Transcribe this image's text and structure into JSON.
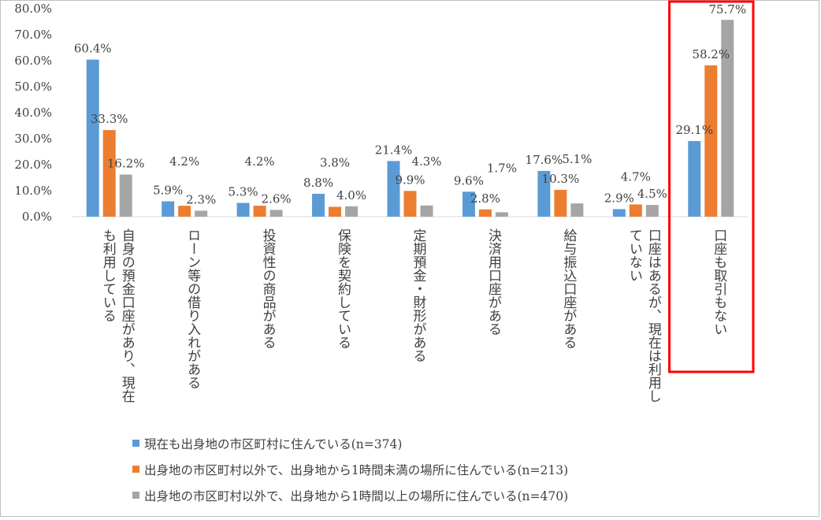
{
  "chart_data": {
    "type": "bar",
    "categories": [
      "自身の預金口座があり、現在も利用している",
      "ローン等の借り入れがある",
      "投資性の商品がある",
      "保険を契約している",
      "定期預金・財形がある",
      "決済用口座がある",
      "給与振込口座がある",
      "口座はあるが、現在は利用していない",
      "口座も取引もない"
    ],
    "category_lines": [
      [
        "自身の預金口座があり、現在",
        "も利用している"
      ],
      [
        "ローン等の借り入れがある"
      ],
      [
        "投資性の商品がある"
      ],
      [
        "保険を契約している"
      ],
      [
        "定期預金・財形がある"
      ],
      [
        "決済用口座がある"
      ],
      [
        "給与振込口座がある"
      ],
      [
        "口座はあるが、現在は利用し",
        "ていない"
      ],
      [
        "口座も取引もない"
      ]
    ],
    "series": [
      {
        "name": "現在も出身地の市区町村に住んでいる(n=374)",
        "color": "#5B9BD5",
        "values": [
          60.4,
          5.9,
          5.3,
          8.8,
          21.4,
          9.6,
          17.6,
          2.9,
          29.1
        ],
        "labels": [
          "60.4%",
          "5.9%",
          "5.3%",
          "8.8%",
          "21.4%",
          "9.6%",
          "17.6%",
          "2.9%",
          "29.1%"
        ]
      },
      {
        "name": "出身地の市区町村以外で、出身地から1時間未満の場所に住んでいる(n=213)",
        "color": "#ED7D31",
        "values": [
          33.3,
          4.2,
          4.2,
          3.8,
          9.9,
          2.8,
          10.3,
          4.7,
          58.2
        ],
        "labels": [
          "33.3%",
          "4.2%",
          "4.2%",
          "3.8%",
          "9.9%",
          "2.8%",
          "10.3%",
          "4.7%",
          "58.2%"
        ]
      },
      {
        "name": "出身地の市区町村以外で、出身地から1時間以上の場所に住んでいる(n=470)",
        "color": "#A5A5A5",
        "values": [
          16.2,
          2.3,
          2.6,
          4.0,
          4.3,
          1.7,
          5.1,
          4.5,
          75.7
        ],
        "labels": [
          "16.2%",
          "2.3%",
          "2.6%",
          "4.0%",
          "4.3%",
          "1.7%",
          "5.1%",
          "4.5%",
          "75.7%"
        ]
      }
    ],
    "y_ticks": [
      "0.0%",
      "10.0%",
      "20.0%",
      "30.0%",
      "40.0%",
      "50.0%",
      "60.0%",
      "70.0%",
      "80.0%"
    ],
    "ylim": [
      0,
      80
    ],
    "grid": false,
    "legend_position": "bottom",
    "highlight_category": "口座も取引もない",
    "highlight_color": "#FF0000"
  }
}
